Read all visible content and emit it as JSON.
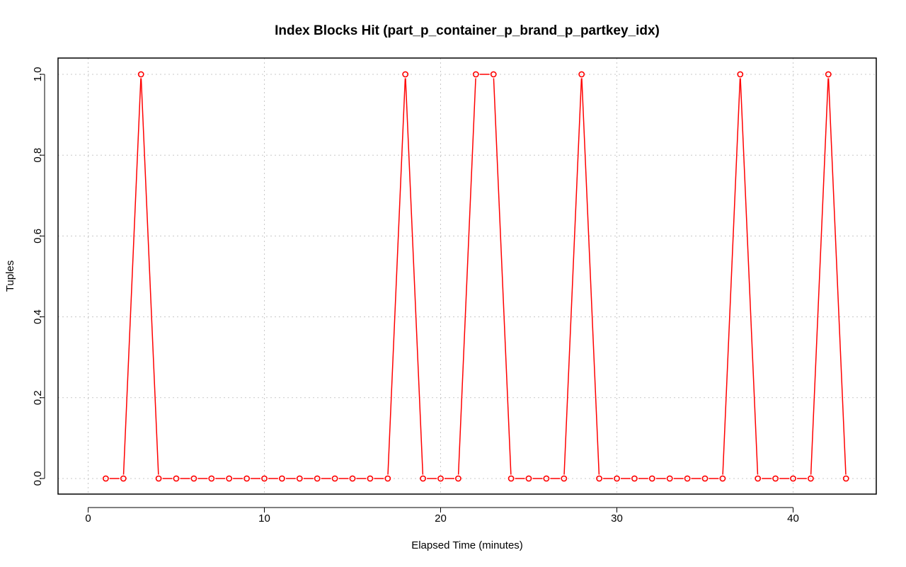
{
  "chart_data": {
    "type": "line",
    "title": "Index Blocks Hit (part_p_container_p_brand_p_partkey_idx)",
    "xlabel": "Elapsed Time (minutes)",
    "ylabel": "Tuples",
    "xlim": [
      0,
      45
    ],
    "ylim": [
      0,
      1
    ],
    "x_ticks": [
      0,
      10,
      20,
      30,
      40
    ],
    "x_tick_labels": [
      "0",
      "10",
      "20",
      "30",
      "40"
    ],
    "y_ticks": [
      0,
      0.2,
      0.4,
      0.6,
      0.8,
      1.0
    ],
    "y_tick_labels": [
      "0.0",
      "0.2",
      "0.4",
      "0.6",
      "0.8",
      "1.0"
    ],
    "grid": true,
    "series": [
      {
        "color": "#ff0000",
        "marker": "open-circle",
        "x": [
          1,
          2,
          3,
          4,
          5,
          6,
          7,
          8,
          9,
          10,
          11,
          12,
          13,
          14,
          15,
          16,
          17,
          18,
          19,
          20,
          21,
          22,
          23,
          24,
          25,
          26,
          27,
          28,
          29,
          30,
          31,
          32,
          33,
          34,
          35,
          36,
          37,
          38,
          39,
          40,
          41,
          42,
          43
        ],
        "y": [
          0,
          0,
          1,
          0,
          0,
          0,
          0,
          0,
          0,
          0,
          0,
          0,
          0,
          0,
          0,
          0,
          0,
          1,
          0,
          0,
          0,
          1,
          1,
          0,
          0,
          0,
          0,
          1,
          0,
          0,
          0,
          0,
          0,
          0,
          0,
          0,
          1,
          0,
          0,
          0,
          0,
          1,
          0
        ]
      }
    ]
  }
}
